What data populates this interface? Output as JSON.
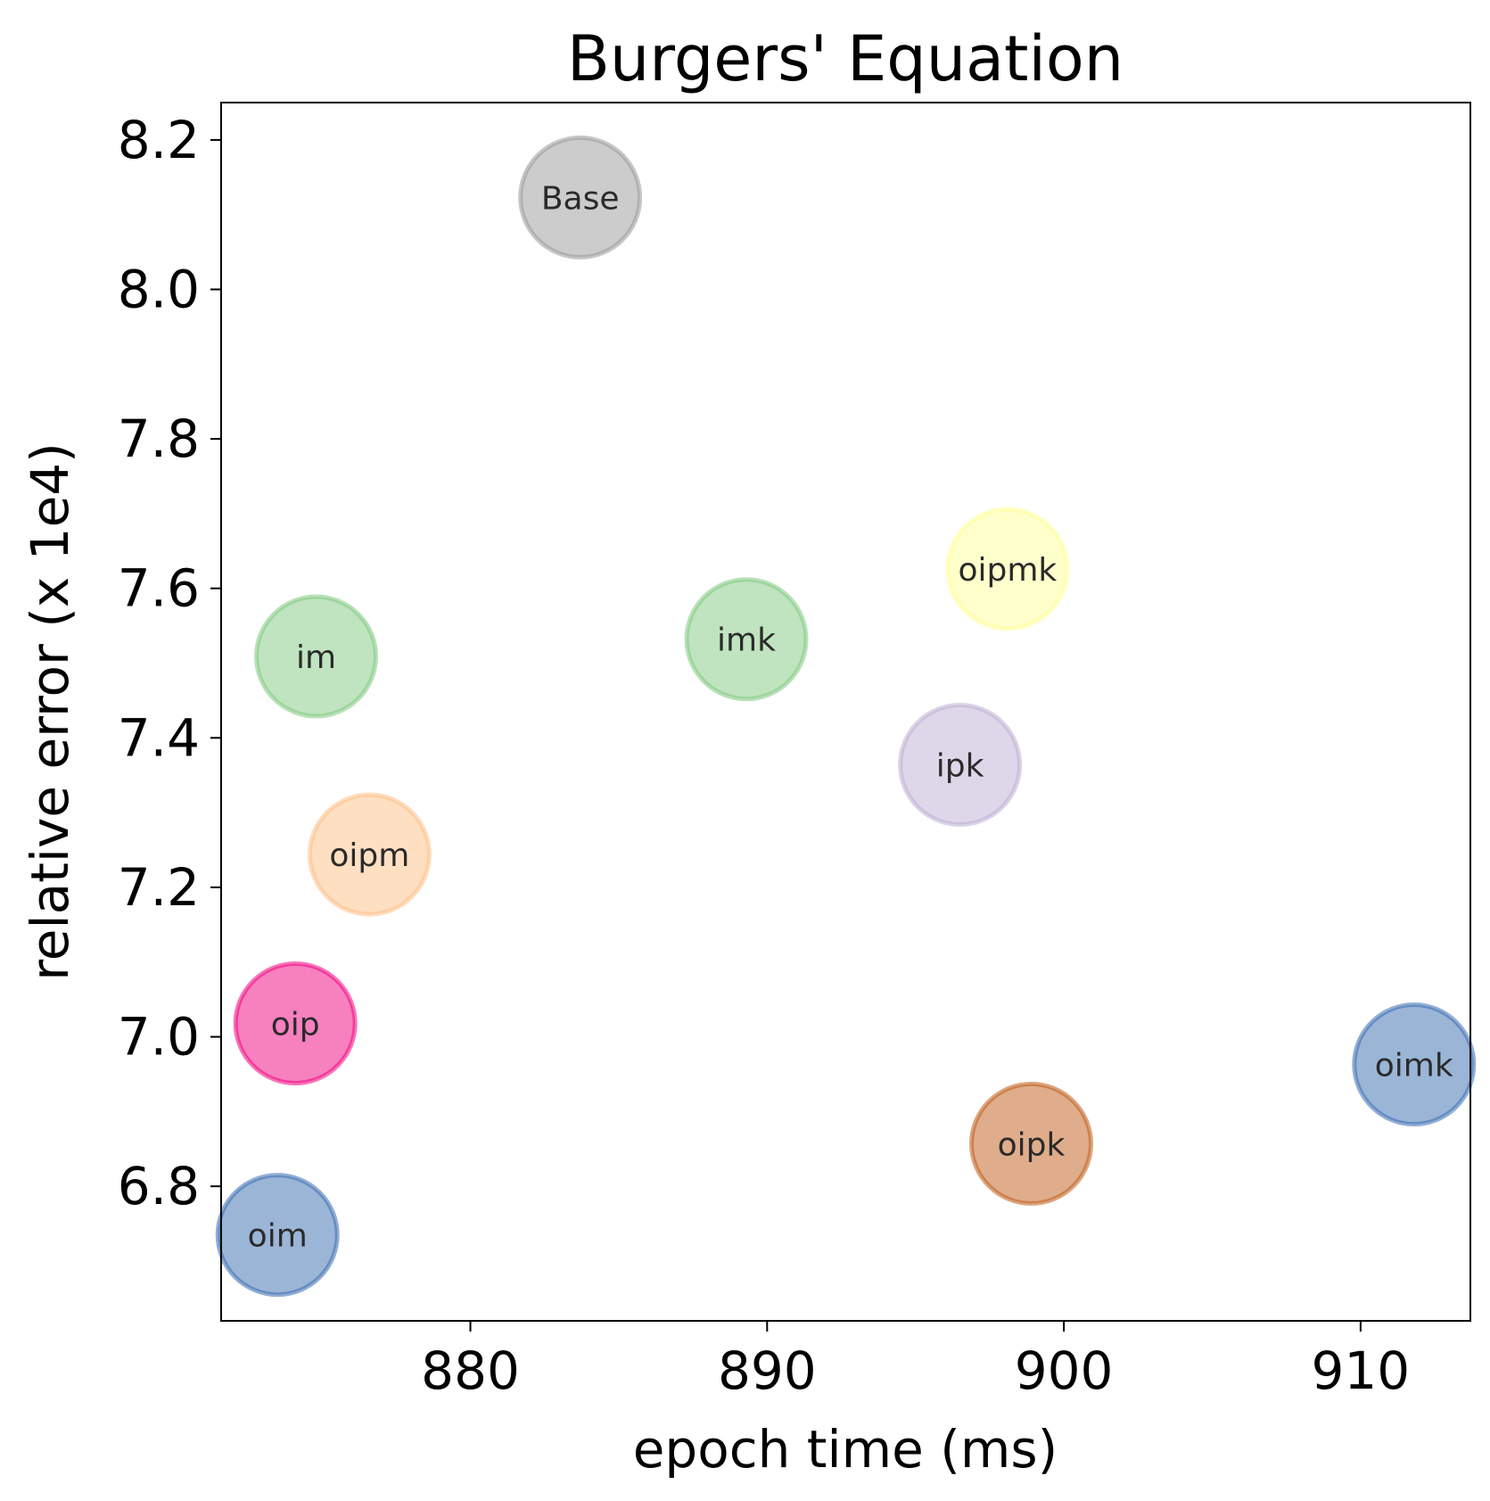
{
  "chart_data": {
    "type": "scatter",
    "title": "Burgers' Equation",
    "xlabel": "epoch time (ms)",
    "ylabel": "relative error (x 1e4)",
    "xlim": [
      871.6,
      913.7
    ],
    "ylim": [
      6.62,
      8.25
    ],
    "xticks": [
      880,
      890,
      900,
      910
    ],
    "xtick_labels": [
      "880",
      "890",
      "900",
      "910"
    ],
    "yticks": [
      6.8,
      7.0,
      7.2,
      7.4,
      7.6,
      7.8,
      8.0,
      8.2
    ],
    "ytick_labels": [
      "6.8",
      "7.0",
      "7.2",
      "7.4",
      "7.6",
      "7.8",
      "8.0",
      "8.2"
    ],
    "grid": false,
    "points": [
      {
        "label": "Base",
        "x": 883.7,
        "y": 8.123,
        "color": "#999999"
      },
      {
        "label": "oipmk",
        "x": 898.1,
        "y": 7.626,
        "color": "#ffff99"
      },
      {
        "label": "im",
        "x": 874.8,
        "y": 7.509,
        "color": "#7fc97f"
      },
      {
        "label": "imk",
        "x": 889.3,
        "y": 7.532,
        "color": "#7fc97f"
      },
      {
        "label": "ipk",
        "x": 896.5,
        "y": 7.364,
        "color": "#beaed4"
      },
      {
        "label": "oipm",
        "x": 876.6,
        "y": 7.244,
        "color": "#fdc086"
      },
      {
        "label": "oip",
        "x": 874.1,
        "y": 7.018,
        "color": "#f0027f"
      },
      {
        "label": "oimk",
        "x": 911.8,
        "y": 6.963,
        "color": "#386cb0"
      },
      {
        "label": "oipk",
        "x": 898.9,
        "y": 6.857,
        "color": "#bf5b17"
      },
      {
        "label": "oim",
        "x": 873.5,
        "y": 6.735,
        "color": "#386cb0"
      }
    ]
  }
}
